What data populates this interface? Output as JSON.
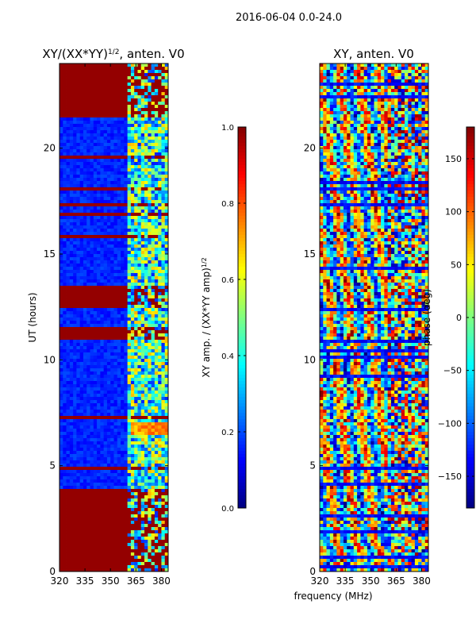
{
  "figure_title": "2016-06-04 0.0-24.0",
  "shared_xlabel": "frequency (MHz)",
  "colors": {
    "stripe_dark_red": "#800000",
    "frame": "#000000"
  },
  "chart_data": [
    {
      "type": "heatmap",
      "title": "XY/(XX*YY)",
      "title_exponent": "1/2",
      "title_suffix": ", anten. V0",
      "xlabel": "frequency (MHz)",
      "ylabel": "UT (hours)",
      "xlim": [
        320,
        384
      ],
      "ylim": [
        0,
        24
      ],
      "xticks": [
        320,
        335,
        350,
        365,
        380
      ],
      "yticks": [
        0,
        5,
        10,
        15,
        20
      ],
      "colormap": "jet",
      "colorbar": {
        "label": "XY amp. / (XX*YY amp)",
        "label_exponent": "1/2",
        "range": [
          0.0,
          1.0
        ],
        "ticks": [
          "0.0",
          "0.2",
          "0.4",
          "0.6",
          "0.8",
          "1.0"
        ],
        "tick_values": [
          0.0,
          0.2,
          0.4,
          0.6,
          0.8,
          1.0
        ]
      },
      "saturated_bands_hours": [
        [
          0,
          3.9
        ],
        [
          10.9,
          11.5
        ],
        [
          12.5,
          13.5
        ],
        [
          21.5,
          24
        ]
      ],
      "high_intensity_region": {
        "freq_mhz": [
          362,
          384
        ],
        "hours": [
          6.5,
          7.0
        ],
        "value": 0.7
      },
      "background_level": 0.12
    },
    {
      "type": "heatmap",
      "title": "XY, anten. V0",
      "xlabel": "frequency (MHz)",
      "ylabel": "",
      "xlim": [
        320,
        384
      ],
      "ylim": [
        0,
        24
      ],
      "xticks": [
        320,
        335,
        350,
        365,
        380
      ],
      "yticks": [
        0,
        5,
        10,
        15,
        20
      ],
      "colormap": "jet",
      "colorbar": {
        "label": "phase (deg)",
        "range": [
          -180,
          180
        ],
        "ticks": [
          "150",
          "100",
          "50",
          "0",
          "−50",
          "−100",
          "−150"
        ],
        "tick_values": [
          150,
          100,
          50,
          0,
          -50,
          -100,
          -150
        ]
      }
    }
  ]
}
